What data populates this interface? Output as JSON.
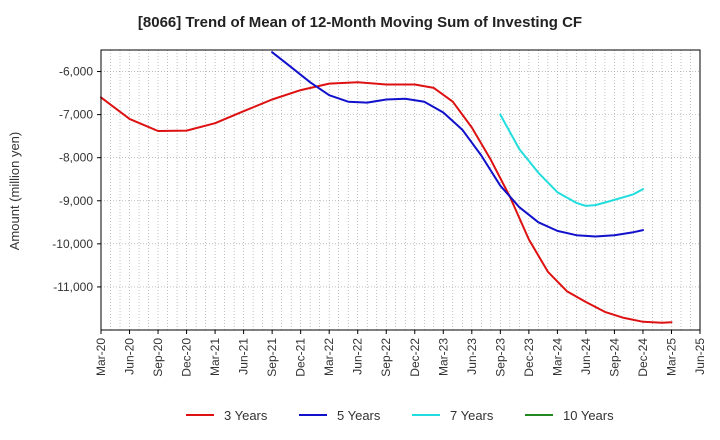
{
  "chart_data": {
    "type": "line",
    "title": "[8066]  Trend of Mean of 12-Month Moving Sum of Investing CF",
    "xlabel": "",
    "ylabel": "Amount (million yen)",
    "ylim": [
      -12000,
      -5500
    ],
    "yticks": [
      -11000,
      -10000,
      -9000,
      -8000,
      -7000,
      -6000
    ],
    "ytick_labels": [
      "-11,000",
      "-10,000",
      "-9,000",
      "-8,000",
      "-7,000",
      "-6,000"
    ],
    "x_tick_labels": [
      "Mar-20",
      "Jun-20",
      "Sep-20",
      "Dec-20",
      "Mar-21",
      "Jun-21",
      "Sep-21",
      "Dec-21",
      "Mar-22",
      "Jun-22",
      "Sep-22",
      "Dec-22",
      "Mar-23",
      "Jun-23",
      "Sep-23",
      "Dec-23",
      "Mar-24",
      "Jun-24",
      "Sep-24",
      "Dec-24",
      "Mar-25",
      "Jun-25"
    ],
    "x_range_months": [
      0,
      63
    ],
    "grid": true,
    "legend_position": "bottom",
    "series": [
      {
        "name": "3 Years",
        "color": "#dd1111",
        "points": [
          [
            0,
            -6600
          ],
          [
            3,
            -7100
          ],
          [
            6,
            -7380
          ],
          [
            9,
            -7370
          ],
          [
            12,
            -7200
          ],
          [
            15,
            -6920
          ],
          [
            18,
            -6650
          ],
          [
            21,
            -6430
          ],
          [
            24,
            -6280
          ],
          [
            27,
            -6250
          ],
          [
            30,
            -6300
          ],
          [
            33,
            -6300
          ],
          [
            35,
            -6380
          ],
          [
            37,
            -6700
          ],
          [
            39,
            -7300
          ],
          [
            41,
            -8050
          ],
          [
            43,
            -8900
          ],
          [
            45,
            -9900
          ],
          [
            47,
            -10650
          ],
          [
            49,
            -11100
          ],
          [
            51,
            -11350
          ],
          [
            53,
            -11580
          ],
          [
            55,
            -11720
          ],
          [
            57,
            -11810
          ],
          [
            59,
            -11830
          ],
          [
            60,
            -11820
          ]
        ]
      },
      {
        "name": "5 Years",
        "color": "#1111cc",
        "points": [
          [
            18,
            -5550
          ],
          [
            20,
            -5900
          ],
          [
            22,
            -6250
          ],
          [
            24,
            -6550
          ],
          [
            26,
            -6700
          ],
          [
            28,
            -6720
          ],
          [
            30,
            -6650
          ],
          [
            32,
            -6630
          ],
          [
            34,
            -6700
          ],
          [
            36,
            -6950
          ],
          [
            38,
            -7350
          ],
          [
            40,
            -7950
          ],
          [
            42,
            -8650
          ],
          [
            44,
            -9150
          ],
          [
            46,
            -9500
          ],
          [
            48,
            -9700
          ],
          [
            50,
            -9800
          ],
          [
            52,
            -9830
          ],
          [
            54,
            -9800
          ],
          [
            56,
            -9730
          ],
          [
            57,
            -9680
          ]
        ]
      },
      {
        "name": "7 Years",
        "color": "#22dddd",
        "points": [
          [
            42,
            -7000
          ],
          [
            44,
            -7800
          ],
          [
            46,
            -8350
          ],
          [
            48,
            -8800
          ],
          [
            50,
            -9050
          ],
          [
            51,
            -9120
          ],
          [
            52,
            -9100
          ],
          [
            54,
            -8980
          ],
          [
            56,
            -8850
          ],
          [
            57,
            -8730
          ]
        ]
      },
      {
        "name": "10 Years",
        "color": "#228822",
        "points": []
      }
    ]
  }
}
